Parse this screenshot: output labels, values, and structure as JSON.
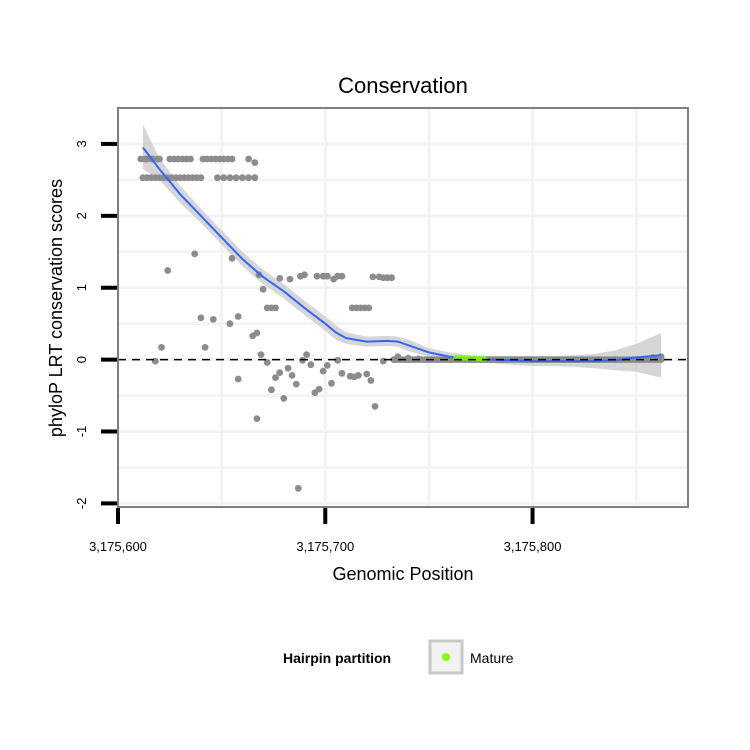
{
  "chart_data": {
    "type": "scatter",
    "title": "Conservation",
    "xlabel": "Genomic Position",
    "ylabel": "phyloP LRT conservation scores",
    "xlim": [
      3175600,
      3175875
    ],
    "ylim": [
      -2.05,
      3.5
    ],
    "x_ticks": [
      3175600,
      3175700,
      3175800
    ],
    "x_tick_labels": [
      "3,175,600",
      "3,175,700",
      "3,175,800"
    ],
    "y_ticks": [
      -2,
      -1,
      0,
      1,
      2,
      3
    ],
    "y_tick_labels": [
      "-2",
      "-1",
      "0",
      "1",
      "2",
      "3"
    ],
    "reference_line": {
      "y": 0,
      "style": "dashed"
    },
    "point_color": "#8c8c8c",
    "mature_color": "#7fff00",
    "smooth_color": "#3366ff",
    "band_color": "#c8c8c8",
    "legend": {
      "title": "Hairpin partition",
      "entries": [
        {
          "label": "Mature",
          "color": "#7fff00"
        }
      ],
      "position": "bottom"
    },
    "smooth": {
      "x": [
        3175612,
        3175620,
        3175630,
        3175640,
        3175650,
        3175660,
        3175670,
        3175680,
        3175690,
        3175700,
        3175705,
        3175710,
        3175720,
        3175730,
        3175735,
        3175740,
        3175750,
        3175760,
        3175770,
        3175780,
        3175790,
        3175800,
        3175810,
        3175820,
        3175830,
        3175840,
        3175850,
        3175862
      ],
      "y": [
        2.95,
        2.65,
        2.3,
        2.0,
        1.7,
        1.4,
        1.15,
        0.95,
        0.72,
        0.5,
        0.38,
        0.3,
        0.25,
        0.26,
        0.25,
        0.2,
        0.1,
        0.04,
        0.01,
        0.0,
        -0.01,
        -0.02,
        -0.02,
        -0.02,
        -0.02,
        -0.01,
        0.03,
        0.06
      ],
      "upper": [
        3.27,
        2.8,
        2.42,
        2.1,
        1.8,
        1.5,
        1.25,
        1.05,
        0.82,
        0.6,
        0.48,
        0.38,
        0.32,
        0.33,
        0.32,
        0.28,
        0.16,
        0.1,
        0.06,
        0.05,
        0.05,
        0.05,
        0.05,
        0.06,
        0.08,
        0.13,
        0.22,
        0.37
      ],
      "lower": [
        2.65,
        2.5,
        2.18,
        1.9,
        1.6,
        1.3,
        1.05,
        0.85,
        0.62,
        0.4,
        0.28,
        0.22,
        0.18,
        0.19,
        0.18,
        0.12,
        0.04,
        -0.02,
        -0.04,
        -0.05,
        -0.07,
        -0.09,
        -0.09,
        -0.1,
        -0.12,
        -0.15,
        -0.17,
        -0.25
      ]
    },
    "mature_segment": {
      "x": [
        3175763,
        3175777
      ],
      "y": [
        0.03,
        0.01
      ]
    },
    "points": [
      [
        3175611,
        2.79
      ],
      [
        3175613,
        2.79
      ],
      [
        3175614,
        2.79
      ],
      [
        3175616,
        2.79
      ],
      [
        3175617,
        2.79
      ],
      [
        3175619,
        2.79
      ],
      [
        3175620,
        2.79
      ],
      [
        3175625,
        2.79
      ],
      [
        3175627,
        2.79
      ],
      [
        3175629,
        2.79
      ],
      [
        3175631,
        2.79
      ],
      [
        3175633,
        2.79
      ],
      [
        3175635,
        2.79
      ],
      [
        3175641,
        2.79
      ],
      [
        3175643,
        2.79
      ],
      [
        3175645,
        2.79
      ],
      [
        3175647,
        2.79
      ],
      [
        3175649,
        2.79
      ],
      [
        3175651,
        2.79
      ],
      [
        3175653,
        2.79
      ],
      [
        3175655,
        2.79
      ],
      [
        3175663,
        2.79
      ],
      [
        3175666,
        2.74
      ],
      [
        3175612,
        2.53
      ],
      [
        3175614,
        2.53
      ],
      [
        3175616,
        2.53
      ],
      [
        3175618,
        2.53
      ],
      [
        3175620,
        2.53
      ],
      [
        3175622,
        2.53
      ],
      [
        3175624,
        2.53
      ],
      [
        3175626,
        2.53
      ],
      [
        3175628,
        2.53
      ],
      [
        3175630,
        2.53
      ],
      [
        3175632,
        2.53
      ],
      [
        3175634,
        2.53
      ],
      [
        3175636,
        2.53
      ],
      [
        3175638,
        2.53
      ],
      [
        3175640,
        2.53
      ],
      [
        3175648,
        2.53
      ],
      [
        3175651,
        2.53
      ],
      [
        3175654,
        2.53
      ],
      [
        3175657,
        2.53
      ],
      [
        3175660,
        2.53
      ],
      [
        3175663,
        2.53
      ],
      [
        3175666,
        2.53
      ],
      [
        3175624,
        1.24
      ],
      [
        3175637,
        1.47
      ],
      [
        3175655,
        1.41
      ],
      [
        3175668,
        1.18
      ],
      [
        3175670,
        0.98
      ],
      [
        3175672,
        0.72
      ],
      [
        3175674,
        0.72
      ],
      [
        3175676,
        0.72
      ],
      [
        3175678,
        1.13
      ],
      [
        3175683,
        1.12
      ],
      [
        3175688,
        1.16
      ],
      [
        3175690,
        1.18
      ],
      [
        3175696,
        1.16
      ],
      [
        3175699,
        1.16
      ],
      [
        3175701,
        1.16
      ],
      [
        3175704,
        1.12
      ],
      [
        3175706,
        1.16
      ],
      [
        3175708,
        1.16
      ],
      [
        3175713,
        0.72
      ],
      [
        3175715,
        0.72
      ],
      [
        3175717,
        0.72
      ],
      [
        3175719,
        0.72
      ],
      [
        3175721,
        0.72
      ],
      [
        3175723,
        1.15
      ],
      [
        3175726,
        1.15
      ],
      [
        3175728,
        1.14
      ],
      [
        3175730,
        1.14
      ],
      [
        3175732,
        1.14
      ],
      [
        3175640,
        0.58
      ],
      [
        3175646,
        0.56
      ],
      [
        3175654,
        0.5
      ],
      [
        3175658,
        0.6
      ],
      [
        3175665,
        0.33
      ],
      [
        3175667,
        0.37
      ],
      [
        3175642,
        0.17
      ],
      [
        3175621,
        0.17
      ],
      [
        3175618,
        -0.02
      ],
      [
        3175658,
        -0.27
      ],
      [
        3175667,
        -0.82
      ],
      [
        3175669,
        0.07
      ],
      [
        3175672,
        -0.04
      ],
      [
        3175674,
        -0.42
      ],
      [
        3175676,
        -0.25
      ],
      [
        3175678,
        -0.18
      ],
      [
        3175680,
        -0.54
      ],
      [
        3175682,
        -0.12
      ],
      [
        3175684,
        -0.22
      ],
      [
        3175686,
        -0.34
      ],
      [
        3175687,
        -1.79
      ],
      [
        3175689,
        -0.01
      ],
      [
        3175691,
        0.07
      ],
      [
        3175693,
        -0.07
      ],
      [
        3175695,
        -0.46
      ],
      [
        3175697,
        -0.41
      ],
      [
        3175699,
        -0.16
      ],
      [
        3175701,
        -0.08
      ],
      [
        3175703,
        -0.33
      ],
      [
        3175706,
        -0.01
      ],
      [
        3175708,
        -0.19
      ],
      [
        3175712,
        -0.23
      ],
      [
        3175714,
        -0.24
      ],
      [
        3175716,
        -0.22
      ],
      [
        3175720,
        -0.2
      ],
      [
        3175722,
        -0.29
      ],
      [
        3175724,
        -0.65
      ],
      [
        3175728,
        -0.02
      ],
      [
        3175735,
        0.04
      ],
      [
        3175740,
        0.02
      ],
      [
        3175745,
        0.01
      ],
      [
        3175750,
        0.0
      ],
      [
        3175755,
        0.0
      ],
      [
        3175785,
        0.0
      ],
      [
        3175800,
        0.0
      ],
      [
        3175820,
        0.0
      ],
      [
        3175840,
        0.0
      ],
      [
        3175858,
        0.03
      ],
      [
        3175862,
        0.04
      ]
    ]
  }
}
